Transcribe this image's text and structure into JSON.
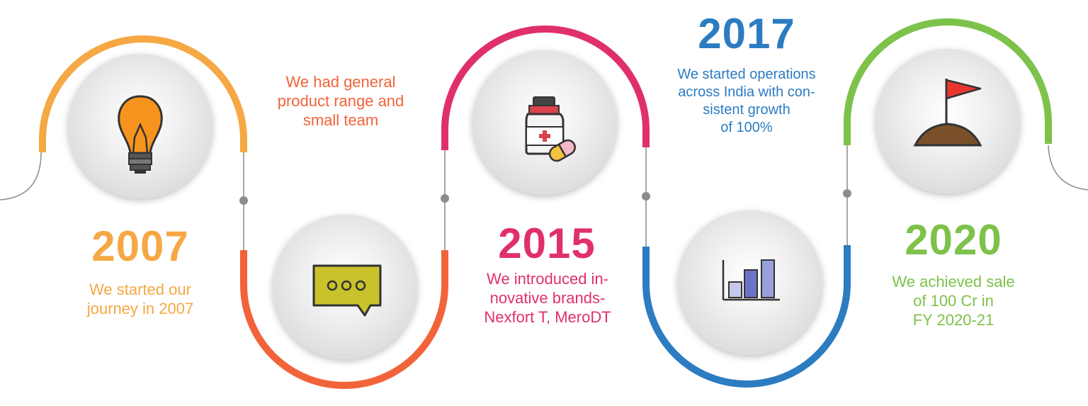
{
  "colors": {
    "orange": "#f5a843",
    "red_orange": "#f2633a",
    "pink": "#e0306a",
    "blue": "#2c7cc1",
    "green": "#7dc24a",
    "connector_gray": "#8c8c8c"
  },
  "milestones": [
    {
      "id": "2007",
      "year": "2007",
      "text": "We started our\njourney in 2007",
      "icon": "lightbulb-icon"
    },
    {
      "id": "team",
      "year": "",
      "text": "We had general\nproduct range and\nsmall team",
      "icon": "chat-bubble-icon"
    },
    {
      "id": "2015",
      "year": "2015",
      "text": "We introduced in-\nnovative brands-\nNexfort T, MeroDT",
      "icon": "medicine-icon"
    },
    {
      "id": "2017",
      "year": "2017",
      "text": "We started operations\nacross India with con-\nsistent growth\nof 100%",
      "icon": "bar-chart-icon"
    },
    {
      "id": "2020",
      "year": "2020",
      "text": "We achieved sale\nof 100 Cr in\nFY 2020-21",
      "icon": "flag-icon"
    }
  ]
}
